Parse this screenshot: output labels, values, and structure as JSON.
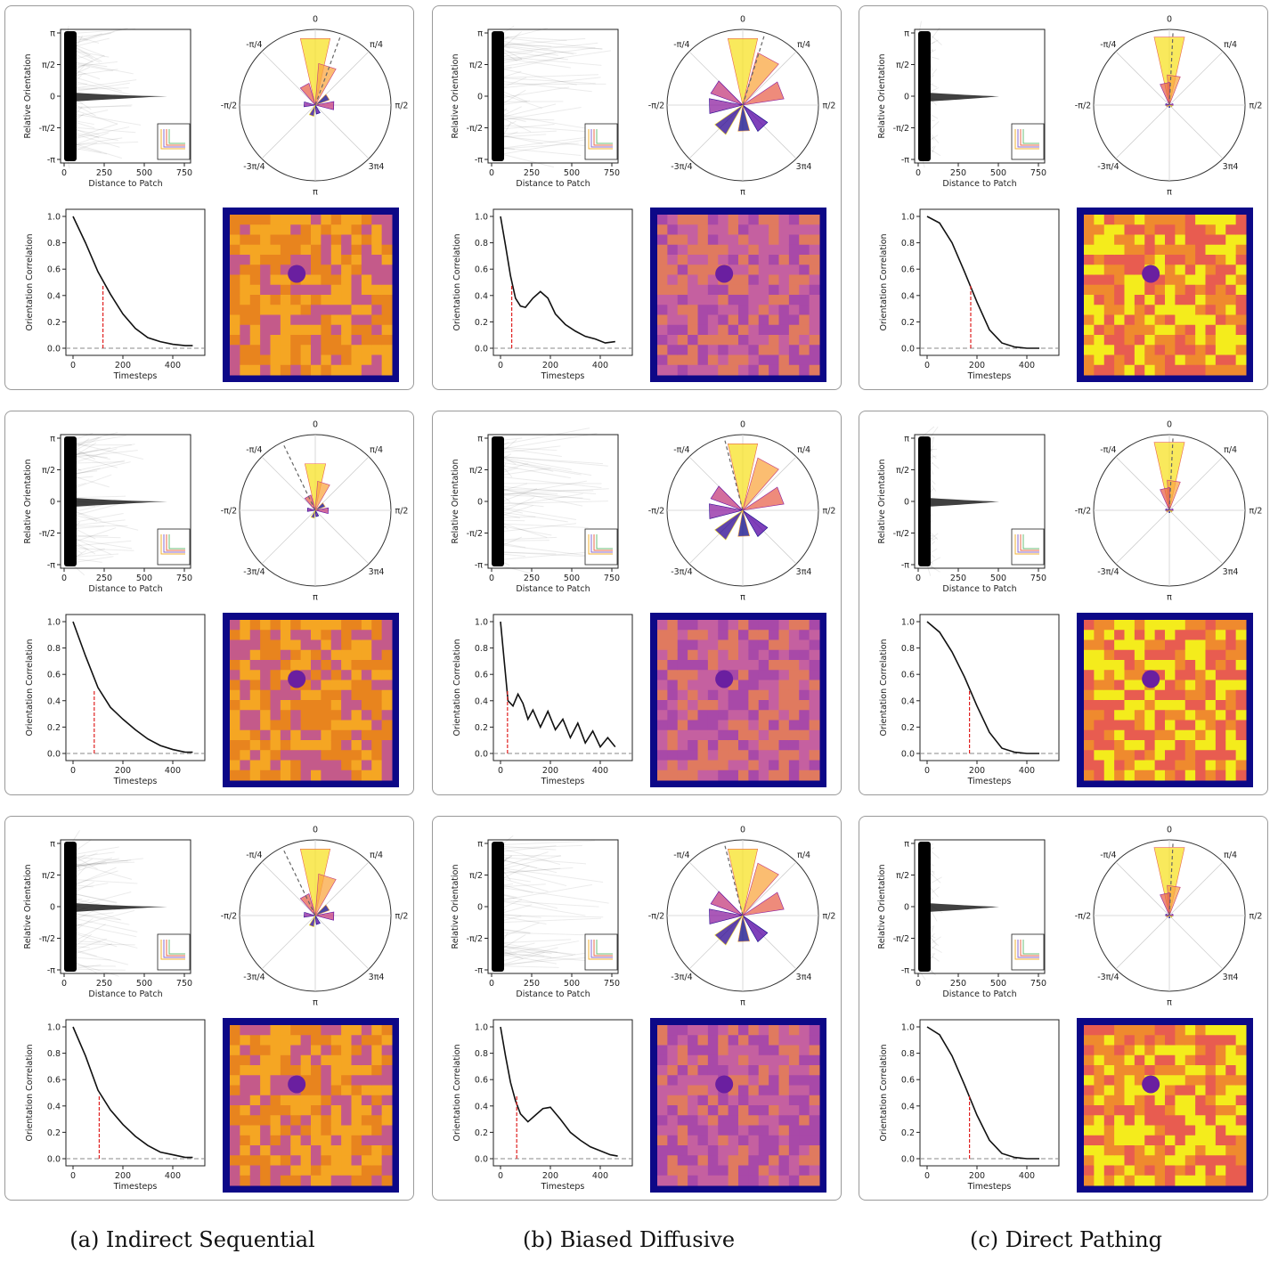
{
  "captions": [
    "(a) Indirect Sequential",
    "(b) Biased Diffusive",
    "(c) Direct Pathing"
  ],
  "axis_text": {
    "scatter_xlabel": "Distance to Patch",
    "scatter_ylabel": "Relative Orientation",
    "scatter_yticks": [
      "π",
      "π/2",
      "0",
      "-π/2",
      "-π"
    ],
    "scatter_xticks": [
      "0",
      "250",
      "500",
      "750"
    ],
    "polar_labels": [
      "0",
      "π/4",
      "π/2",
      "3π4",
      "π",
      "-3π/4",
      "-π/2",
      "-π/4"
    ],
    "corr_xlabel": "Timesteps",
    "corr_ylabel": "Orientation Correlation",
    "corr_yticks": [
      "0.0",
      "0.2",
      "0.4",
      "0.6",
      "0.8",
      "1.0"
    ],
    "corr_xticks": [
      "0",
      "200",
      "400"
    ]
  },
  "chart_data": [
    {
      "type": "line",
      "column": "Indirect Sequential",
      "row": 1,
      "x": [
        0,
        50,
        100,
        150,
        200,
        250,
        300,
        350,
        400,
        450,
        480
      ],
      "y": [
        1.0,
        0.8,
        0.58,
        0.41,
        0.26,
        0.15,
        0.08,
        0.05,
        0.03,
        0.02,
        0.02
      ],
      "ylim": [
        0,
        1
      ],
      "xlim": [
        0,
        500
      ],
      "dashed_x": 120,
      "dashed_y": 0.48
    },
    {
      "type": "line",
      "column": "Biased Diffusive",
      "row": 1,
      "x": [
        0,
        20,
        40,
        60,
        80,
        100,
        130,
        160,
        190,
        220,
        260,
        300,
        340,
        380,
        420,
        460
      ],
      "y": [
        1.0,
        0.78,
        0.55,
        0.38,
        0.32,
        0.31,
        0.38,
        0.43,
        0.38,
        0.26,
        0.18,
        0.13,
        0.09,
        0.07,
        0.04,
        0.05
      ],
      "ylim": [
        0,
        1
      ],
      "xlim": [
        0,
        500
      ],
      "dashed_x": 45,
      "dashed_y": 0.48
    },
    {
      "type": "line",
      "column": "Direct Pathing",
      "row": 1,
      "x": [
        0,
        50,
        100,
        150,
        200,
        250,
        300,
        350,
        400,
        450
      ],
      "y": [
        1.0,
        0.95,
        0.8,
        0.58,
        0.35,
        0.14,
        0.04,
        0.01,
        0.0,
        0.0
      ],
      "ylim": [
        0,
        1
      ],
      "xlim": [
        0,
        500
      ],
      "dashed_x": 175,
      "dashed_y": 0.48
    },
    {
      "type": "line",
      "column": "Indirect Sequential",
      "row": 2,
      "x": [
        0,
        50,
        100,
        150,
        200,
        250,
        300,
        350,
        400,
        450,
        480
      ],
      "y": [
        1.0,
        0.74,
        0.5,
        0.35,
        0.26,
        0.18,
        0.11,
        0.06,
        0.03,
        0.01,
        0.01
      ],
      "ylim": [
        0,
        1
      ],
      "xlim": [
        0,
        500
      ],
      "dashed_x": 85,
      "dashed_y": 0.48
    },
    {
      "type": "line",
      "column": "Biased Diffusive",
      "row": 2,
      "x": [
        0,
        15,
        30,
        50,
        70,
        90,
        110,
        130,
        160,
        190,
        220,
        250,
        280,
        310,
        340,
        370,
        400,
        430,
        460
      ],
      "y": [
        1.0,
        0.7,
        0.4,
        0.36,
        0.45,
        0.38,
        0.26,
        0.33,
        0.2,
        0.32,
        0.18,
        0.26,
        0.12,
        0.23,
        0.08,
        0.17,
        0.05,
        0.12,
        0.05
      ],
      "ylim": [
        0,
        1
      ],
      "xlim": [
        0,
        500
      ],
      "dashed_x": 28,
      "dashed_y": 0.48
    },
    {
      "type": "line",
      "column": "Direct Pathing",
      "row": 2,
      "x": [
        0,
        50,
        100,
        150,
        200,
        250,
        300,
        350,
        400,
        450
      ],
      "y": [
        1.0,
        0.92,
        0.77,
        0.58,
        0.36,
        0.16,
        0.04,
        0.01,
        0.0,
        0.0
      ],
      "ylim": [
        0,
        1
      ],
      "xlim": [
        0,
        500
      ],
      "dashed_x": 170,
      "dashed_y": 0.48
    },
    {
      "type": "line",
      "column": "Indirect Sequential",
      "row": 3,
      "x": [
        0,
        50,
        100,
        150,
        200,
        250,
        300,
        350,
        400,
        450,
        480
      ],
      "y": [
        1.0,
        0.78,
        0.52,
        0.37,
        0.26,
        0.17,
        0.1,
        0.05,
        0.03,
        0.01,
        0.01
      ],
      "ylim": [
        0,
        1
      ],
      "xlim": [
        0,
        500
      ],
      "dashed_x": 105,
      "dashed_y": 0.48
    },
    {
      "type": "line",
      "column": "Biased Diffusive",
      "row": 3,
      "x": [
        0,
        20,
        40,
        60,
        80,
        110,
        140,
        170,
        200,
        240,
        280,
        320,
        360,
        400,
        440,
        470
      ],
      "y": [
        1.0,
        0.78,
        0.58,
        0.44,
        0.34,
        0.28,
        0.33,
        0.38,
        0.39,
        0.3,
        0.2,
        0.14,
        0.09,
        0.06,
        0.03,
        0.02
      ],
      "ylim": [
        0,
        1
      ],
      "xlim": [
        0,
        500
      ],
      "dashed_x": 65,
      "dashed_y": 0.48
    },
    {
      "type": "line",
      "column": "Direct Pathing",
      "row": 3,
      "x": [
        0,
        50,
        100,
        150,
        200,
        250,
        300,
        350,
        400,
        450
      ],
      "y": [
        1.0,
        0.94,
        0.78,
        0.56,
        0.33,
        0.14,
        0.04,
        0.01,
        0.0,
        0.0
      ],
      "ylim": [
        0,
        1
      ],
      "xlim": [
        0,
        500
      ],
      "dashed_x": 170,
      "dashed_y": 0.48
    }
  ]
}
